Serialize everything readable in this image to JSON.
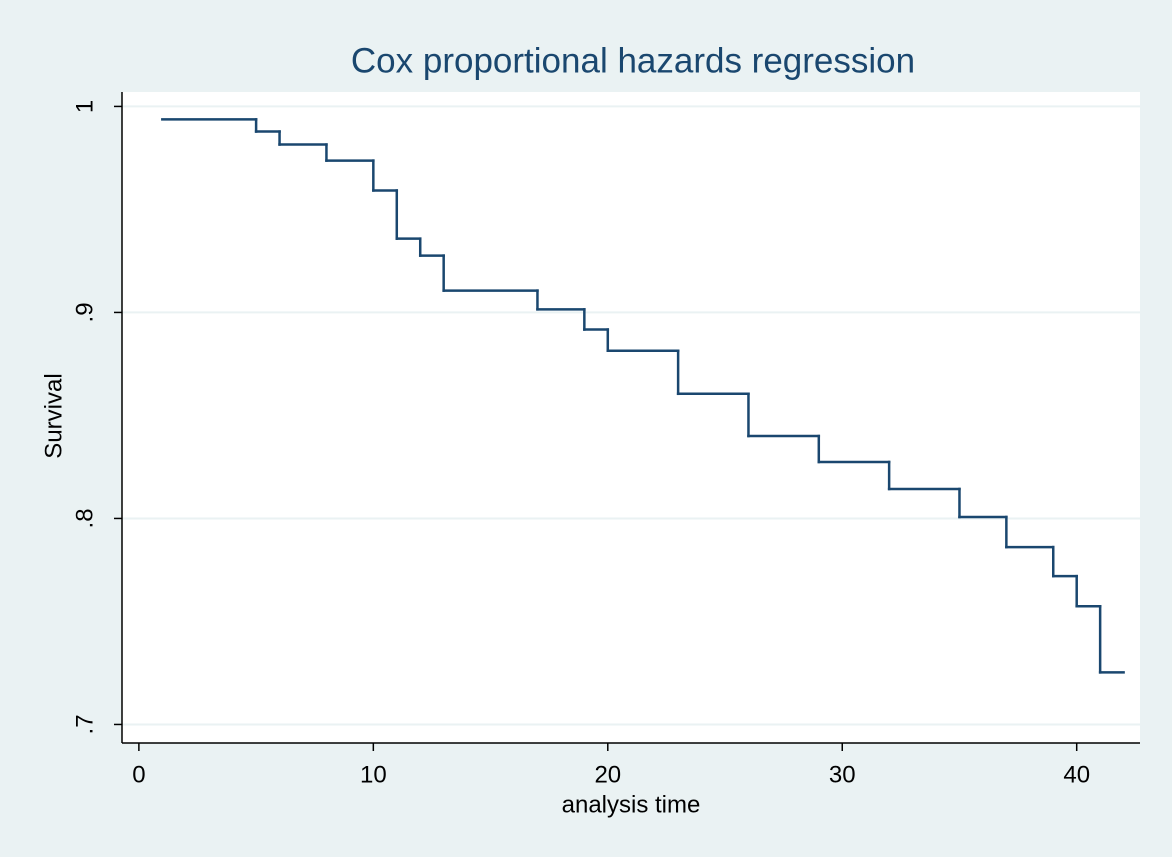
{
  "chart_data": {
    "type": "step",
    "title": "Cox proportional hazards regression",
    "x_label": "analysis time",
    "y_label": "Survival",
    "x": [
      1,
      5,
      6,
      8,
      10,
      11,
      12,
      13,
      17,
      19,
      20,
      23,
      26,
      29,
      32,
      35,
      37,
      39,
      40,
      41,
      42
    ],
    "series": [
      {
        "color": "#1a476f",
        "values": [
          0.9937,
          0.9878,
          0.9815,
          0.9737,
          0.9592,
          0.9358,
          0.9276,
          0.9106,
          0.9015,
          0.8917,
          0.8814,
          0.8605,
          0.84,
          0.8274,
          0.8143,
          0.8007,
          0.7861,
          0.772,
          0.7574,
          0.7253,
          0.7253
        ]
      }
    ],
    "xlim": [
      -0.72,
      42.7
    ],
    "xticks": [
      0,
      10,
      20,
      30,
      40
    ],
    "ylim": [
      0.691,
      1.007
    ],
    "yticks": [
      {
        "value": 0.7,
        "label": ".7"
      },
      {
        "value": 0.8,
        "label": ".8"
      },
      {
        "value": 0.9,
        "label": ".9"
      },
      1
    ],
    "grid": true
  }
}
